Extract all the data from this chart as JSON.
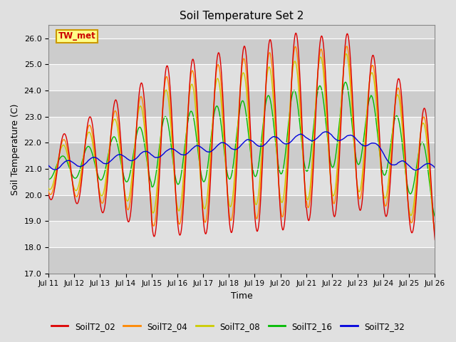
{
  "title": "Soil Temperature Set 2",
  "xlabel": "Time",
  "ylabel": "Soil Temperature (C)",
  "ylim": [
    17.0,
    26.5
  ],
  "yticks": [
    17.0,
    18.0,
    19.0,
    20.0,
    21.0,
    22.0,
    23.0,
    24.0,
    25.0,
    26.0
  ],
  "series_colors": {
    "SoilT2_02": "#dd0000",
    "SoilT2_04": "#ff8800",
    "SoilT2_08": "#cccc00",
    "SoilT2_16": "#00bb00",
    "SoilT2_32": "#0000dd"
  },
  "legend_labels": [
    "SoilT2_02",
    "SoilT2_04",
    "SoilT2_08",
    "SoilT2_16",
    "SoilT2_32"
  ],
  "bg_color": "#e0e0e0",
  "plot_bg_color": "#d8d8d8",
  "stripe_color_dark": "#cccccc",
  "stripe_color_light": "#e0e0e0",
  "annotation_text": "TW_met",
  "annotation_bg": "#ffff88",
  "annotation_edge": "#cc9900",
  "annotation_text_color": "#cc0000",
  "x_start_day": 11,
  "x_end_day": 26,
  "x_tick_days": [
    11,
    12,
    13,
    14,
    15,
    16,
    17,
    18,
    19,
    20,
    21,
    22,
    23,
    24,
    25,
    26
  ],
  "line_width": 1.0
}
